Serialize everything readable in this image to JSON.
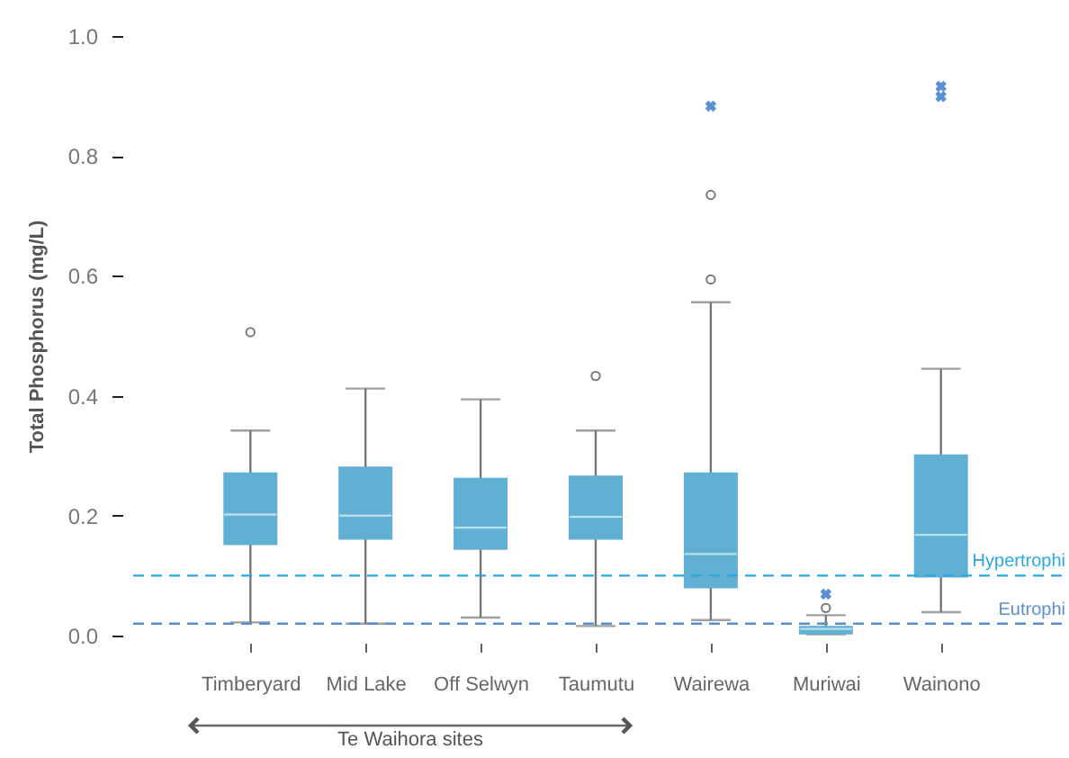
{
  "chart_data": {
    "type": "box",
    "ylabel": "Total Phosphorus (mg/L)",
    "categories": [
      "Timberyard",
      "Mid Lake",
      "Off Selwyn",
      "Taumutu",
      "Wairewa",
      "Muriwai",
      "Wainono"
    ],
    "ylim": [
      0,
      1.0
    ],
    "yticks": [
      {
        "value": 0,
        "label": "0.0"
      },
      0.2,
      0.4,
      0.6,
      0.8,
      {
        "value": 1,
        "label": "1.0"
      }
    ],
    "grid": false,
    "series": [
      {
        "color": "#62afd4",
        "boxes": [
          {
            "low": 0.022,
            "q1": 0.151,
            "median": 0.202,
            "q3": 0.272,
            "high": 0.342,
            "outliers": [
              0.506
            ]
          },
          {
            "low": 0.02,
            "q1": 0.16,
            "median": 0.2,
            "q3": 0.282,
            "high": 0.412
          },
          {
            "low": 0.03,
            "q1": 0.143,
            "median": 0.18,
            "q3": 0.263,
            "high": 0.394
          },
          {
            "low": 0.016,
            "q1": 0.16,
            "median": 0.198,
            "q3": 0.267,
            "high": 0.342,
            "outliers": [
              0.433
            ]
          },
          {
            "low": 0.026,
            "q1": 0.079,
            "median": 0.136,
            "q3": 0.272,
            "high": 0.556,
            "outliers": [
              0.594,
              0.735
            ]
          },
          {
            "low": 0.002,
            "q1": 0.002,
            "median": 0.011,
            "q3": 0.016,
            "high": 0.034,
            "outliers": [
              0.046
            ]
          },
          {
            "low": 0.039,
            "q1": 0.097,
            "median": 0.168,
            "q3": 0.302,
            "high": 0.445
          }
        ]
      },
      {
        "type": "scatter",
        "marker": "cross",
        "color": "#5b8fd6",
        "x": [
          "Wairewa",
          "Muriwai",
          "Wainono",
          "Wainono"
        ],
        "values": [
          0.883,
          0.069,
          0.916,
          0.899
        ]
      }
    ],
    "ref_lines": [
      {
        "axis": "y",
        "value": 0.1,
        "label": "Hypertrophi",
        "color": "#29a8e0",
        "line_style": "dashed"
      },
      {
        "axis": "y",
        "value": 0.02,
        "label": "Eutrophi",
        "color": "#5b8fcc",
        "line_style": "dashed"
      }
    ],
    "annotations": [
      "Te Waihora sites"
    ]
  }
}
